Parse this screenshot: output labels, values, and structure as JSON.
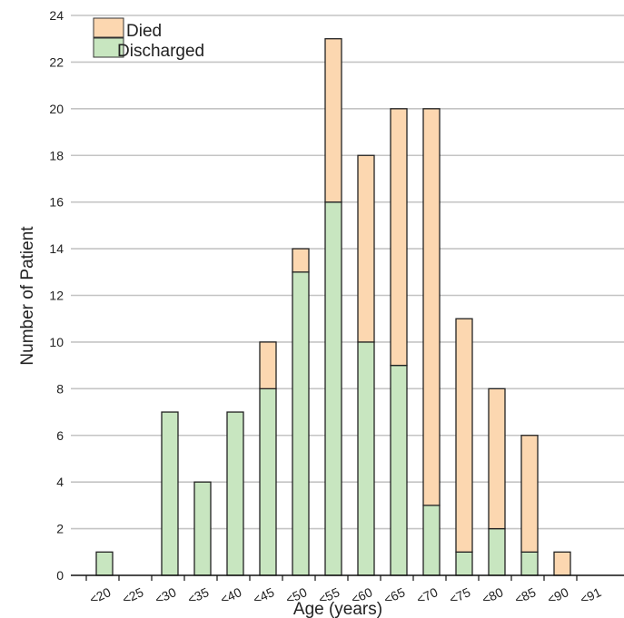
{
  "chart_data": {
    "type": "bar",
    "stacked": true,
    "categories": [
      "<20",
      "<25",
      "<30",
      "<35",
      "<40",
      "<45",
      "<50",
      "<55",
      "<60",
      "<65",
      "<70",
      "<75",
      "<80",
      "<85",
      "<90",
      "<91"
    ],
    "series": [
      {
        "name": "Discharged",
        "color": "#c8e6c0",
        "values": [
          1,
          0,
          7,
          4,
          7,
          8,
          13,
          16,
          10,
          9,
          3,
          1,
          2,
          1,
          0,
          0
        ]
      },
      {
        "name": "Died",
        "color": "#fcd7b0",
        "values": [
          0,
          0,
          0,
          0,
          0,
          2,
          1,
          7,
          8,
          11,
          17,
          10,
          6,
          5,
          1,
          0
        ]
      }
    ],
    "xlabel": "Age (years)",
    "ylabel": "Number of Patient",
    "ylim": [
      0,
      24
    ],
    "yticks": [
      0,
      2,
      4,
      6,
      8,
      10,
      12,
      14,
      16,
      18,
      20,
      22,
      24
    ],
    "grid": true,
    "legend_position": "top-left"
  },
  "legend": {
    "died_label": "Died",
    "discharged_label": "Discharged"
  }
}
